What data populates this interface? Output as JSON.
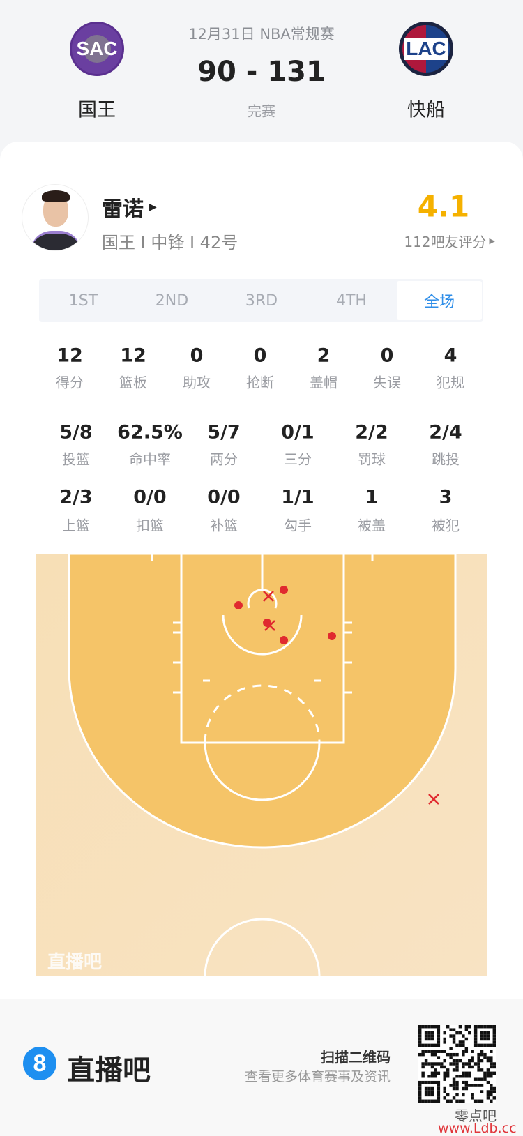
{
  "match": {
    "date_league": "12月31日 NBA常规赛",
    "score": "90 - 131",
    "status": "完赛",
    "home": {
      "abbr": "SAC",
      "name": "国王",
      "color": "#6a3fa0"
    },
    "away": {
      "abbr": "LAC",
      "name": "快船",
      "color": "#1d428a"
    }
  },
  "player": {
    "name": "雷诺",
    "info": "国王 I 中锋 I 42号",
    "rating": "4.1",
    "rating_count": "112吧友评分",
    "rating_color": "#f5b100"
  },
  "tabs": [
    {
      "label": "1ST"
    },
    {
      "label": "2ND"
    },
    {
      "label": "3RD"
    },
    {
      "label": "4TH"
    },
    {
      "label": "全场",
      "active": true
    }
  ],
  "stats_row1": [
    {
      "v": "12",
      "l": "得分"
    },
    {
      "v": "12",
      "l": "篮板"
    },
    {
      "v": "0",
      "l": "助攻"
    },
    {
      "v": "0",
      "l": "抢断"
    },
    {
      "v": "2",
      "l": "盖帽"
    },
    {
      "v": "0",
      "l": "失误"
    },
    {
      "v": "4",
      "l": "犯规"
    }
  ],
  "stats_row2": [
    {
      "v": "5/8",
      "l": "投篮"
    },
    {
      "v": "62.5%",
      "l": "命中率"
    },
    {
      "v": "5/7",
      "l": "两分"
    },
    {
      "v": "0/1",
      "l": "三分"
    },
    {
      "v": "2/2",
      "l": "罚球"
    },
    {
      "v": "2/4",
      "l": "跳投"
    }
  ],
  "stats_row3": [
    {
      "v": "2/3",
      "l": "上篮"
    },
    {
      "v": "0/0",
      "l": "扣篮"
    },
    {
      "v": "0/0",
      "l": "补篮"
    },
    {
      "v": "1/1",
      "l": "勾手"
    },
    {
      "v": "1",
      "l": "被盖"
    },
    {
      "v": "3",
      "l": "被犯"
    }
  ],
  "shot_chart": {
    "made_marker": "red-dot",
    "missed_marker": "red-x",
    "made_count": 5,
    "missed_count": 3,
    "watermark": "直播吧",
    "shot_color": "#e02a2f"
  },
  "footer": {
    "brand": "直播吧",
    "brand_icon": "8",
    "scan_title": "扫描二维码",
    "scan_sub": "查看更多体育赛事及资讯",
    "watermark_cn": "零点吧",
    "watermark_url": "www.Ldb.cc"
  }
}
